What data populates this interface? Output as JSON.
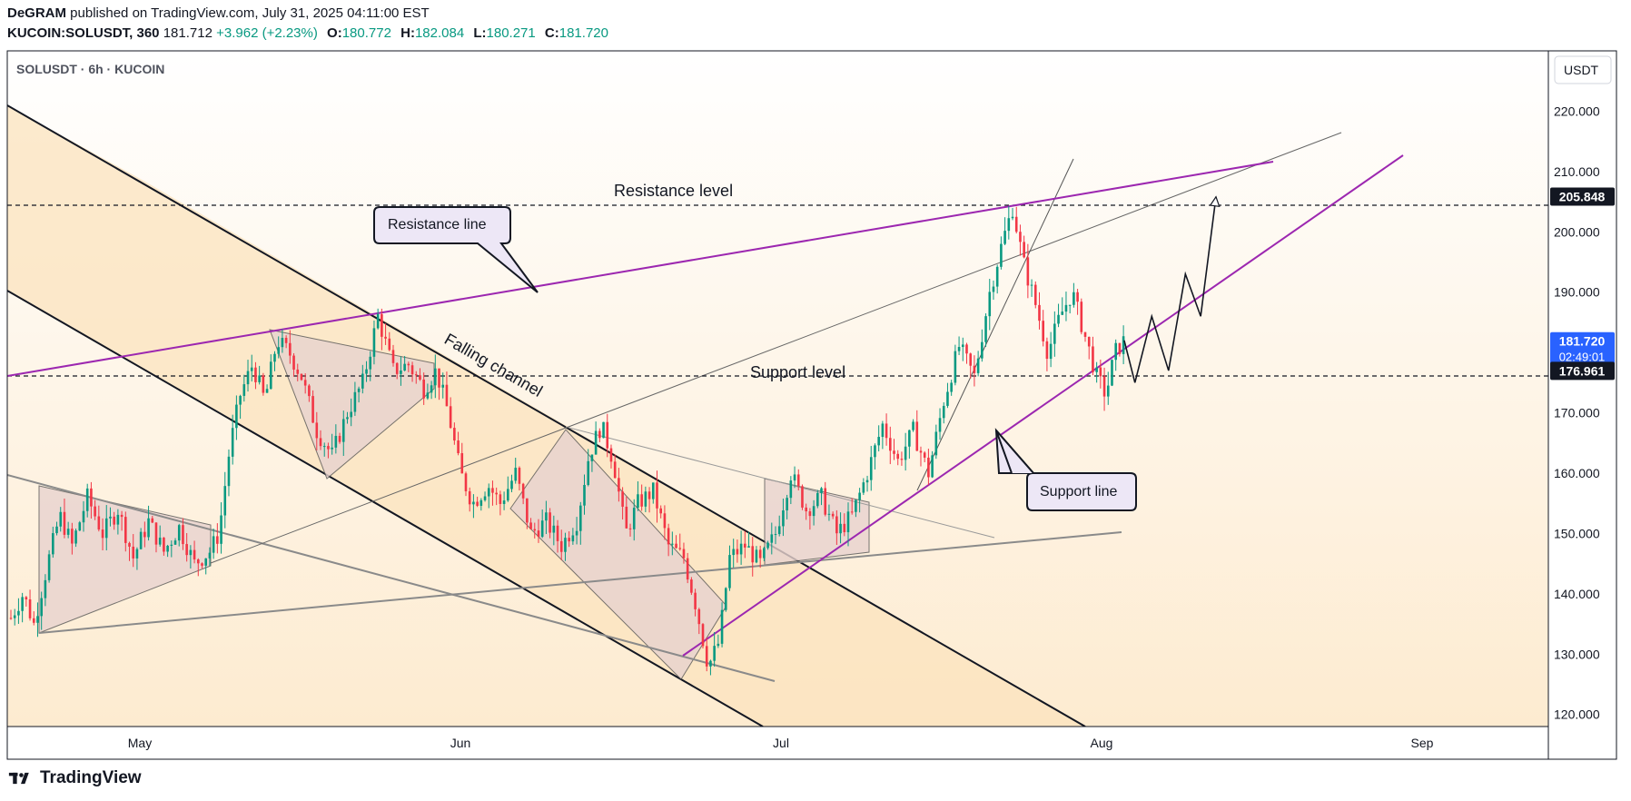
{
  "header": {
    "line1": {
      "author": "DeGRAM",
      "text": " published on TradingView.com, July 31, 2025 04:11:00 EST"
    },
    "line2": {
      "symbol": "KUCOIN:SOLUSDT, 360",
      "price": "181.712",
      "change": "+3.962 (+2.23%)",
      "open_label": "O:",
      "open": "180.772",
      "high_label": "H:",
      "high": "182.084",
      "low_label": "L:",
      "low": "180.271",
      "close_label": "C:",
      "close": "181.720"
    }
  },
  "chart_title": "SOLUSDT · 6h · KUCOIN",
  "footer": {
    "logo_text": "TradingView"
  },
  "colors": {
    "up": "#089981",
    "down": "#f23645",
    "purple": "#9c27b0",
    "price_label_bg": "#2962ff",
    "channel_fill": "#fbe3bd",
    "pattern_fill": "#e8d3cf"
  },
  "chart_data": {
    "type": "candlestick",
    "symbol": "SOLUSDT",
    "timeframe": "6h",
    "exchange": "KUCOIN",
    "currency_label": "USDT",
    "ylim": [
      118,
      230
    ],
    "y_ticks": [
      "120.000",
      "130.000",
      "140.000",
      "150.000",
      "160.000",
      "170.000",
      "180.000",
      "190.000",
      "200.000",
      "210.000",
      "220.000"
    ],
    "x_ticks": [
      "May",
      "Jun",
      "Jul",
      "Aug",
      "Sep"
    ],
    "grid": false,
    "price_tags": [
      {
        "value": "205.848",
        "style": "dark"
      },
      {
        "value": "181.720",
        "sub": "02:49:01",
        "style": "blue"
      },
      {
        "value": "176.961",
        "style": "dark"
      }
    ],
    "levels": [
      {
        "name": "Resistance level",
        "value": 205.848
      },
      {
        "name": "Support level",
        "value": 176.961
      }
    ],
    "annotations": [
      {
        "text": "Resistance line",
        "type": "callout"
      },
      {
        "text": "Support line",
        "type": "callout"
      },
      {
        "text": "Falling channel",
        "type": "label"
      }
    ],
    "price_path": [
      {
        "t": 0.0,
        "p": 136
      },
      {
        "t": 0.8,
        "p": 140
      },
      {
        "t": 1.5,
        "p": 135
      },
      {
        "t": 2.5,
        "p": 146
      },
      {
        "t": 3.2,
        "p": 153
      },
      {
        "t": 4.0,
        "p": 148
      },
      {
        "t": 5.0,
        "p": 156
      },
      {
        "t": 6.0,
        "p": 150
      },
      {
        "t": 7.0,
        "p": 154
      },
      {
        "t": 8.0,
        "p": 146
      },
      {
        "t": 9.0,
        "p": 152
      },
      {
        "t": 10.0,
        "p": 147
      },
      {
        "t": 11.0,
        "p": 151
      },
      {
        "t": 12.0,
        "p": 145
      },
      {
        "t": 13.0,
        "p": 147
      },
      {
        "t": 13.6,
        "p": 150
      },
      {
        "t": 14.3,
        "p": 164
      },
      {
        "t": 15.0,
        "p": 173
      },
      {
        "t": 15.8,
        "p": 178
      },
      {
        "t": 16.6,
        "p": 172
      },
      {
        "t": 17.4,
        "p": 182
      },
      {
        "t": 18.2,
        "p": 180
      },
      {
        "t": 19.0,
        "p": 176
      },
      {
        "t": 20.0,
        "p": 167
      },
      {
        "t": 21.0,
        "p": 163
      },
      {
        "t": 22.0,
        "p": 170
      },
      {
        "t": 23.0,
        "p": 175
      },
      {
        "t": 24.0,
        "p": 186
      },
      {
        "t": 25.0,
        "p": 177
      },
      {
        "t": 26.0,
        "p": 178
      },
      {
        "t": 27.0,
        "p": 174
      },
      {
        "t": 27.8,
        "p": 177
      },
      {
        "t": 28.6,
        "p": 170
      },
      {
        "t": 29.4,
        "p": 160
      },
      {
        "t": 30.2,
        "p": 155
      },
      {
        "t": 31.2,
        "p": 158
      },
      {
        "t": 32.0,
        "p": 155
      },
      {
        "t": 33.0,
        "p": 160
      },
      {
        "t": 34.0,
        "p": 150
      },
      {
        "t": 35.0,
        "p": 152
      },
      {
        "t": 36.0,
        "p": 148
      },
      {
        "t": 37.0,
        "p": 152
      },
      {
        "t": 37.8,
        "p": 163
      },
      {
        "t": 38.6,
        "p": 168
      },
      {
        "t": 39.4,
        "p": 162
      },
      {
        "t": 40.2,
        "p": 150
      },
      {
        "t": 41.0,
        "p": 155
      },
      {
        "t": 42.0,
        "p": 157
      },
      {
        "t": 43.0,
        "p": 148
      },
      {
        "t": 44.0,
        "p": 146
      },
      {
        "t": 44.8,
        "p": 138
      },
      {
        "t": 45.6,
        "p": 128
      },
      {
        "t": 46.3,
        "p": 132
      },
      {
        "t": 47.0,
        "p": 146
      },
      {
        "t": 48.0,
        "p": 148
      },
      {
        "t": 49.0,
        "p": 145
      },
      {
        "t": 50.0,
        "p": 150
      },
      {
        "t": 51.0,
        "p": 160
      },
      {
        "t": 52.0,
        "p": 154
      },
      {
        "t": 53.0,
        "p": 156
      },
      {
        "t": 54.0,
        "p": 150
      },
      {
        "t": 55.0,
        "p": 153
      },
      {
        "t": 56.0,
        "p": 160
      },
      {
        "t": 57.0,
        "p": 168
      },
      {
        "t": 58.0,
        "p": 162
      },
      {
        "t": 59.0,
        "p": 167
      },
      {
        "t": 60.0,
        "p": 160
      },
      {
        "t": 61.0,
        "p": 172
      },
      {
        "t": 62.0,
        "p": 181
      },
      {
        "t": 63.0,
        "p": 176
      },
      {
        "t": 64.0,
        "p": 190
      },
      {
        "t": 64.8,
        "p": 198
      },
      {
        "t": 65.5,
        "p": 204
      },
      {
        "t": 66.2,
        "p": 195
      },
      {
        "t": 67.0,
        "p": 188
      },
      {
        "t": 67.8,
        "p": 180
      },
      {
        "t": 68.6,
        "p": 186
      },
      {
        "t": 69.4,
        "p": 190
      },
      {
        "t": 70.2,
        "p": 183
      },
      {
        "t": 71.0,
        "p": 176
      },
      {
        "t": 71.6,
        "p": 173
      },
      {
        "t": 72.2,
        "p": 180
      },
      {
        "t": 72.8,
        "p": 182
      }
    ],
    "projection_path": [
      {
        "t": 72.8,
        "p": 182
      },
      {
        "t": 73.5,
        "p": 175
      },
      {
        "t": 74.6,
        "p": 186
      },
      {
        "t": 75.7,
        "p": 177
      },
      {
        "t": 76.8,
        "p": 193
      },
      {
        "t": 77.8,
        "p": 186
      },
      {
        "t": 78.8,
        "p": 205.8
      }
    ]
  }
}
